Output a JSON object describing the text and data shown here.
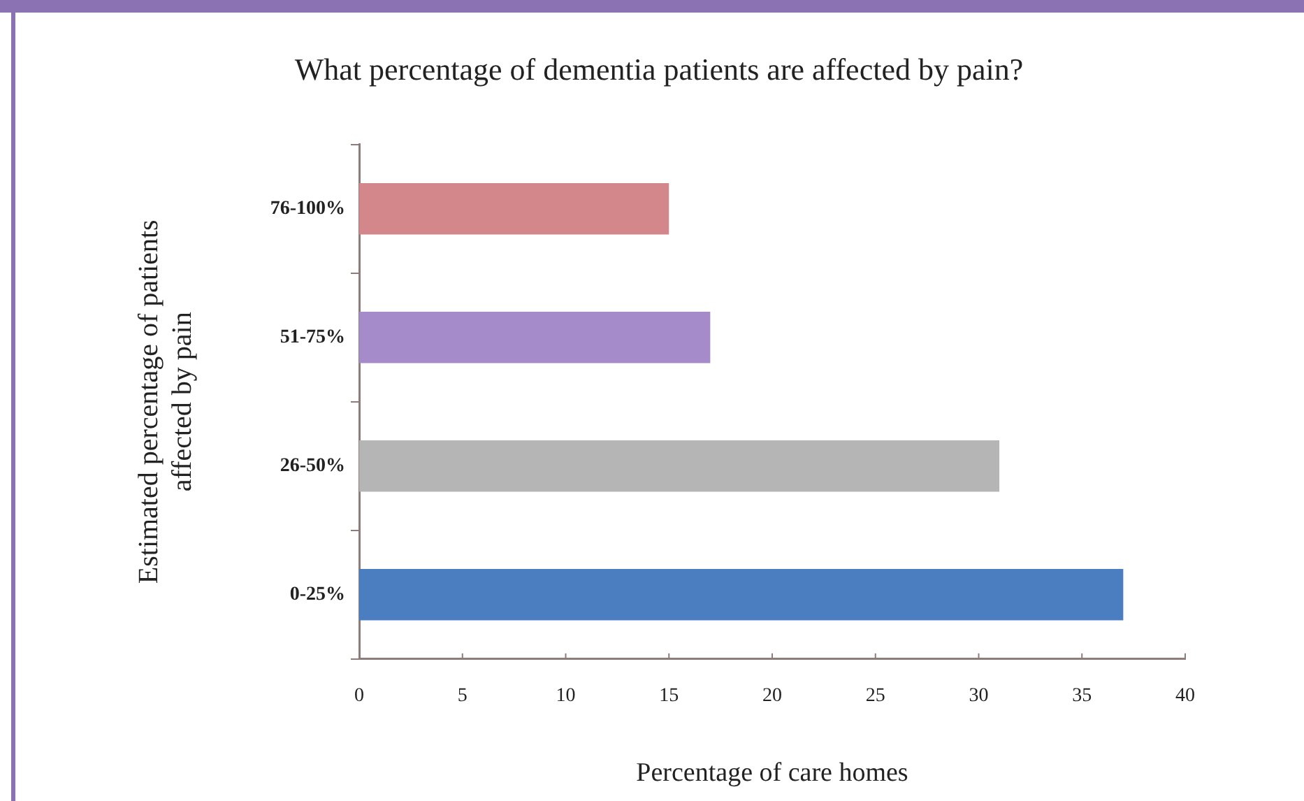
{
  "chart_data": {
    "type": "bar",
    "orientation": "horizontal",
    "title": "What percentage of dementia patients are affected by pain?",
    "xlabel": "Percentage of care homes",
    "ylabel": "Estimated percentage of patients affected by pain",
    "categories": [
      "76-100%",
      "51-75%",
      "26-50%",
      "0-25%"
    ],
    "values": [
      15,
      17,
      31,
      37
    ],
    "colors": [
      "#d4878b",
      "#a58bc9",
      "#b5b5b5",
      "#4b7dc1"
    ],
    "xlim": [
      0,
      40
    ],
    "xticks": [
      0,
      5,
      10,
      15,
      20,
      25,
      30,
      35,
      40
    ]
  }
}
